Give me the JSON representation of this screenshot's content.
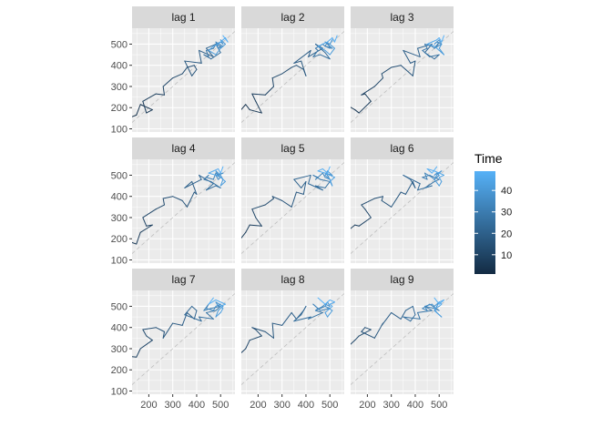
{
  "chart_data": {
    "type": "line",
    "panels": [
      "lag 1",
      "lag 2",
      "lag 3",
      "lag 4",
      "lag 5",
      "lag 6",
      "lag 7",
      "lag 8",
      "lag 9"
    ],
    "x_ticks": [
      200,
      300,
      400,
      500
    ],
    "y_ticks": [
      100,
      200,
      300,
      400,
      500
    ],
    "xlim": [
      130,
      560
    ],
    "ylim": [
      85,
      575
    ],
    "diagonal": "y = x reference line (dashed)",
    "series": [
      {
        "values": [
          110,
          148,
          165,
          215,
          190,
          175,
          230,
          265,
          260,
          300,
          340,
          360,
          390,
          400,
          380,
          350,
          420,
          410,
          470,
          440,
          480,
          500,
          460,
          430,
          450,
          440,
          470,
          480,
          500,
          490,
          480,
          510,
          490,
          480,
          500,
          510,
          500,
          520,
          500,
          480,
          450,
          470,
          490,
          500,
          510,
          520,
          530,
          510,
          540
        ]
      }
    ],
    "legend": {
      "title": "Time",
      "ticks": [
        10,
        20,
        30,
        40
      ],
      "range": [
        1,
        49
      ],
      "color_low": "#132B43",
      "color_high": "#56B1F7"
    },
    "colors": {
      "panel_bg": "#EBEBEB",
      "grid": "#FFFFFF",
      "strip_bg": "#D9D9D9",
      "reference_line": "#BEBEBE"
    }
  }
}
